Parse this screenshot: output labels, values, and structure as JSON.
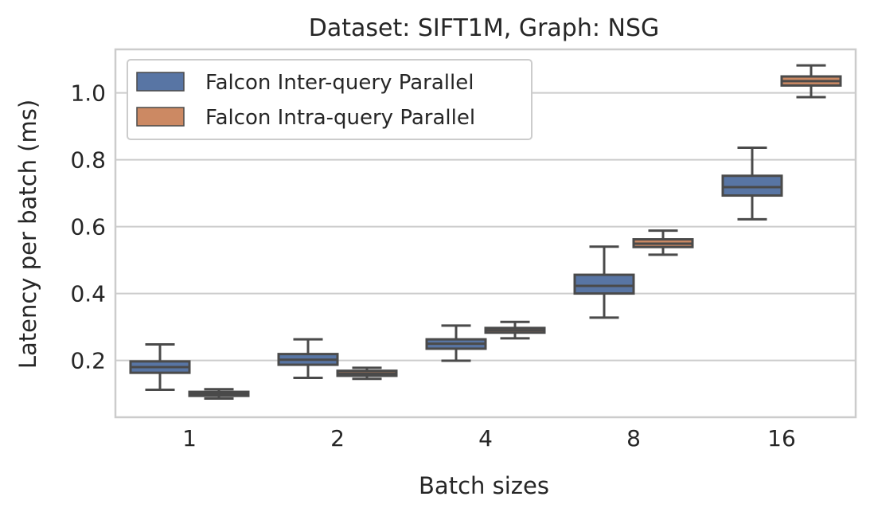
{
  "chart_data": {
    "type": "box",
    "title": "Dataset: SIFT1M, Graph: NSG",
    "xlabel": "Batch sizes",
    "ylabel": "Latency per batch (ms)",
    "categories": [
      "1",
      "2",
      "4",
      "8",
      "16"
    ],
    "ylim": [
      0.03,
      1.13
    ],
    "yticks": [
      0.2,
      0.4,
      0.6,
      0.8,
      1.0
    ],
    "ytick_labels": [
      "0.2",
      "0.4",
      "0.6",
      "0.8",
      "1.0"
    ],
    "grid": "horizontal",
    "legend_position": "top-left",
    "series": [
      {
        "name": "Falcon Inter-query Parallel",
        "color": "#5875a4",
        "boxes": [
          {
            "whisker_low": 0.112,
            "q1": 0.163,
            "median": 0.18,
            "q3": 0.197,
            "whisker_high": 0.248
          },
          {
            "whisker_low": 0.148,
            "q1": 0.187,
            "median": 0.202,
            "q3": 0.219,
            "whisker_high": 0.263
          },
          {
            "whisker_low": 0.199,
            "q1": 0.235,
            "median": 0.25,
            "q3": 0.263,
            "whisker_high": 0.304
          },
          {
            "whisker_low": 0.328,
            "q1": 0.4,
            "median": 0.423,
            "q3": 0.456,
            "whisker_high": 0.54
          },
          {
            "whisker_low": 0.622,
            "q1": 0.693,
            "median": 0.718,
            "q3": 0.752,
            "whisker_high": 0.836
          }
        ]
      },
      {
        "name": "Falcon Intra-query Parallel",
        "color": "#cc8963",
        "boxes": [
          {
            "whisker_low": 0.086,
            "q1": 0.094,
            "median": 0.1,
            "q3": 0.106,
            "whisker_high": 0.114
          },
          {
            "whisker_low": 0.145,
            "q1": 0.154,
            "median": 0.161,
            "q3": 0.169,
            "whisker_high": 0.178
          },
          {
            "whisker_low": 0.266,
            "q1": 0.283,
            "median": 0.29,
            "q3": 0.297,
            "whisker_high": 0.315
          },
          {
            "whisker_low": 0.516,
            "q1": 0.539,
            "median": 0.549,
            "q3": 0.562,
            "whisker_high": 0.588
          },
          {
            "whisker_low": 0.987,
            "q1": 1.022,
            "median": 1.035,
            "q3": 1.049,
            "whisker_high": 1.082
          }
        ]
      }
    ]
  },
  "colors": {
    "grid": "#cccccc",
    "frame": "#cccccc",
    "box_edge": "#4a4a4a",
    "text": "#262626"
  }
}
